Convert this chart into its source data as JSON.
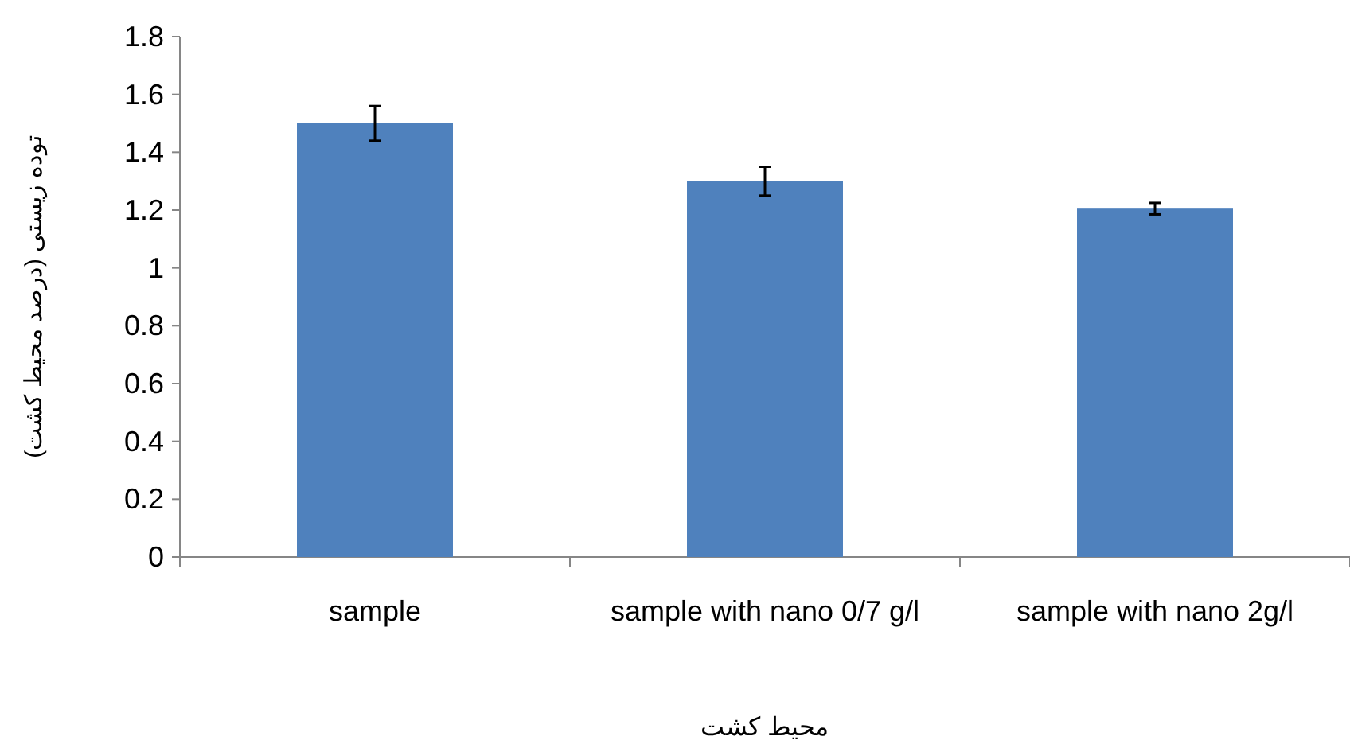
{
  "chart_data": {
    "type": "bar",
    "xlabel": "محیط کشت",
    "ylabel": "توده زیستی (درصد محیط کشت)",
    "categories": [
      "sample",
      "sample with nano 0/7 g/l",
      "sample with nano 2g/l"
    ],
    "values": [
      1.5,
      1.3,
      1.205
    ],
    "errors": [
      0.06,
      0.05,
      0.02
    ],
    "color": "#4f81bd",
    "ylim": [
      0,
      1.8
    ],
    "yticks": [
      0,
      0.2,
      0.4,
      0.6,
      0.8,
      {
        "value": 1,
        "label": "1"
      },
      1.2,
      1.4,
      1.6,
      1.8
    ],
    "grid": false
  }
}
